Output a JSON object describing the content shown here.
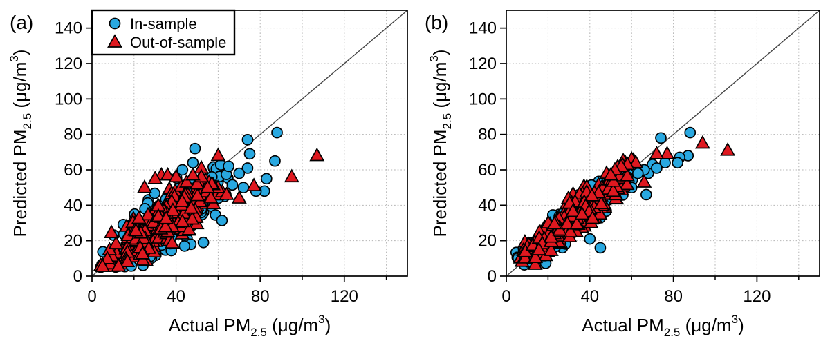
{
  "figure": {
    "background": "#ffffff",
    "panel_labels": [
      "(a)",
      "(b)"
    ]
  },
  "chart_data": [
    {
      "type": "scatter",
      "panel_label": "(a)",
      "xlabel_parts": {
        "pre": "Actual PM",
        "sub": "2.5",
        "mid": " (μg/m",
        "sup": "3",
        "post": ")"
      },
      "ylabel_parts": {
        "pre": "Predicted PM",
        "sub": "2.5",
        "mid": " (μg/m",
        "sup": "3",
        "post": ")"
      },
      "xlim": [
        0,
        150
      ],
      "ylim": [
        0,
        150
      ],
      "x_major_ticks": [
        0,
        40,
        80,
        120
      ],
      "x_minor_ticks": [
        20,
        60,
        100,
        140
      ],
      "y_major_ticks": [
        0,
        20,
        40,
        60,
        80,
        100,
        120,
        140
      ],
      "grid_step": 20,
      "grid_style": "dotted",
      "grid_color": "#b5b5b5",
      "identity_line": {
        "show": true,
        "from": [
          0,
          0
        ],
        "to": [
          150,
          150
        ],
        "color": "#444444"
      },
      "legend": {
        "visible": true,
        "position": "top-left"
      },
      "series": [
        {
          "name": "In-sample",
          "marker": "circle",
          "fill": "#29A8E0",
          "stroke": "#000000",
          "cluster": {
            "count": 225,
            "seed": 1337,
            "x_min": 2,
            "x_max": 72,
            "slope": 0.7,
            "intercept": 7,
            "noise_sd": 8.0,
            "y_min": 5
          },
          "outlier_points": [
            [
              88,
              81
            ],
            [
              74,
              77
            ],
            [
              75,
              69
            ],
            [
              87,
              65
            ],
            [
              74,
              61
            ],
            [
              70,
              58
            ],
            [
              83,
              55
            ],
            [
              82,
              48
            ],
            [
              78,
              48
            ],
            [
              72,
              50
            ],
            [
              65,
              62
            ],
            [
              63,
              45
            ],
            [
              60,
              44
            ],
            [
              57,
              56
            ],
            [
              53,
              19
            ],
            [
              49,
              72
            ],
            [
              48,
              64
            ],
            [
              43,
              60
            ],
            [
              47,
              18
            ],
            [
              44,
              17
            ],
            [
              52,
              38
            ],
            [
              58,
              46
            ]
          ]
        },
        {
          "name": "Out-of-sample",
          "marker": "triangle",
          "fill": "#DF181F",
          "stroke": "#000000",
          "cluster": {
            "count": 275,
            "seed": 2024,
            "x_min": 3,
            "x_max": 63,
            "slope": 0.8,
            "intercept": 4,
            "noise_sd": 6.5,
            "y_min": 5
          },
          "outlier_points": [
            [
              107,
              68
            ],
            [
              95,
              56
            ],
            [
              77,
              51
            ],
            [
              70,
              44
            ],
            [
              64,
              46
            ],
            [
              60,
              68
            ],
            [
              52,
              61
            ],
            [
              57,
              52
            ],
            [
              33,
              57
            ],
            [
              36,
              57
            ],
            [
              30,
              55
            ],
            [
              40,
              56
            ],
            [
              45,
              53
            ],
            [
              50,
              52
            ],
            [
              55,
              50
            ],
            [
              52,
              56
            ],
            [
              48,
              57
            ],
            [
              25,
              50
            ]
          ]
        }
      ]
    },
    {
      "type": "scatter",
      "panel_label": "(b)",
      "xlabel_parts": {
        "pre": "Actual PM",
        "sub": "2.5",
        "mid": " (μg/m",
        "sup": "3",
        "post": ")"
      },
      "ylabel_parts": {
        "pre": "Predicted PM",
        "sub": "2.5",
        "mid": " (μg/m",
        "sup": "3",
        "post": ")"
      },
      "xlim": [
        0,
        150
      ],
      "ylim": [
        0,
        150
      ],
      "x_major_ticks": [
        0,
        40,
        80,
        120
      ],
      "x_minor_ticks": [
        20,
        60,
        100,
        140
      ],
      "y_major_ticks": [
        0,
        20,
        40,
        60,
        80,
        100,
        120,
        140
      ],
      "grid_step": 20,
      "grid_style": "dotted",
      "grid_color": "#b5b5b5",
      "identity_line": {
        "show": true,
        "from": [
          0,
          0
        ],
        "to": [
          150,
          150
        ],
        "color": "#444444"
      },
      "legend": {
        "visible": false,
        "position": "top-left"
      },
      "series": [
        {
          "name": "In-sample",
          "marker": "circle",
          "fill": "#29A8E0",
          "stroke": "#000000",
          "cluster": {
            "count": 225,
            "seed": 99,
            "x_min": 2,
            "x_max": 64,
            "slope": 0.93,
            "intercept": 2,
            "noise_sd": 4.6,
            "y_min": 4
          },
          "outlier_points": [
            [
              88,
              81
            ],
            [
              74,
              78
            ],
            [
              87,
              68
            ],
            [
              83,
              67
            ],
            [
              82,
              64
            ],
            [
              76,
              64
            ],
            [
              70,
              63
            ],
            [
              68,
              58
            ],
            [
              67,
              46
            ],
            [
              66,
              60
            ],
            [
              72,
              61
            ],
            [
              45,
              16
            ],
            [
              40,
              21
            ],
            [
              58,
              56
            ],
            [
              63,
              58
            ],
            [
              60,
              50
            ]
          ]
        },
        {
          "name": "Out-of-sample",
          "marker": "triangle",
          "fill": "#DF181F",
          "stroke": "#000000",
          "cluster": {
            "count": 280,
            "seed": 555,
            "x_min": 3,
            "x_max": 63,
            "slope": 0.94,
            "intercept": 2,
            "noise_sd": 5.0,
            "y_min": 4
          },
          "outlier_points": [
            [
              106,
              71
            ],
            [
              94,
              75
            ],
            [
              77,
              69
            ],
            [
              72,
              69
            ],
            [
              66,
              53
            ],
            [
              60,
              66
            ],
            [
              62,
              64
            ],
            [
              58,
              63
            ],
            [
              55,
              62
            ],
            [
              52,
              60
            ],
            [
              48,
              58
            ],
            [
              50,
              57
            ]
          ]
        }
      ]
    }
  ]
}
